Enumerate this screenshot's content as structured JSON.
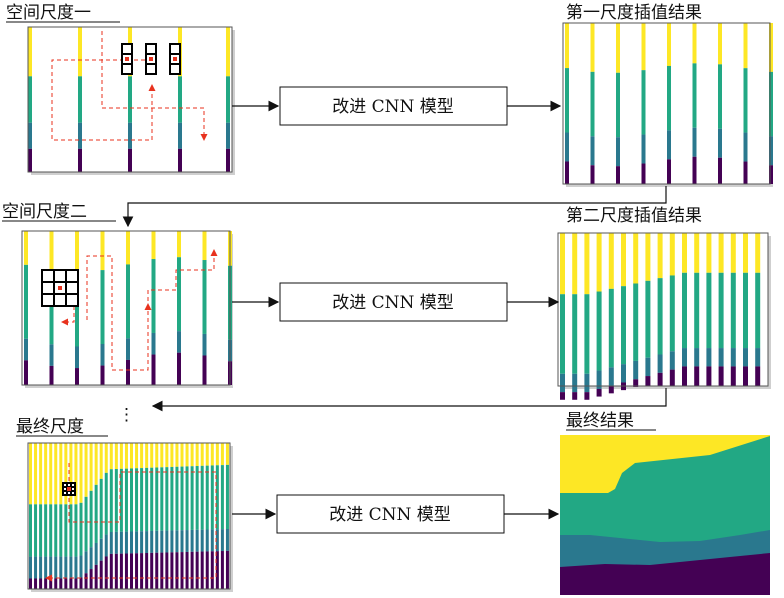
{
  "labels": {
    "scale1": "空间尺度一",
    "scale2": "空间尺度二",
    "scale_final": "最终尺度",
    "result1": "第一尺度插值结果",
    "result2": "第二尺度插值结果",
    "result_final": "最终结果",
    "model_box": "改进 CNN 模型",
    "ellipsis": "⋮"
  },
  "colors": {
    "yellow": "#fde725",
    "green": "#22a884",
    "blue": "#2a788e",
    "purple": "#440154",
    "guide": "#e8321e"
  }
}
